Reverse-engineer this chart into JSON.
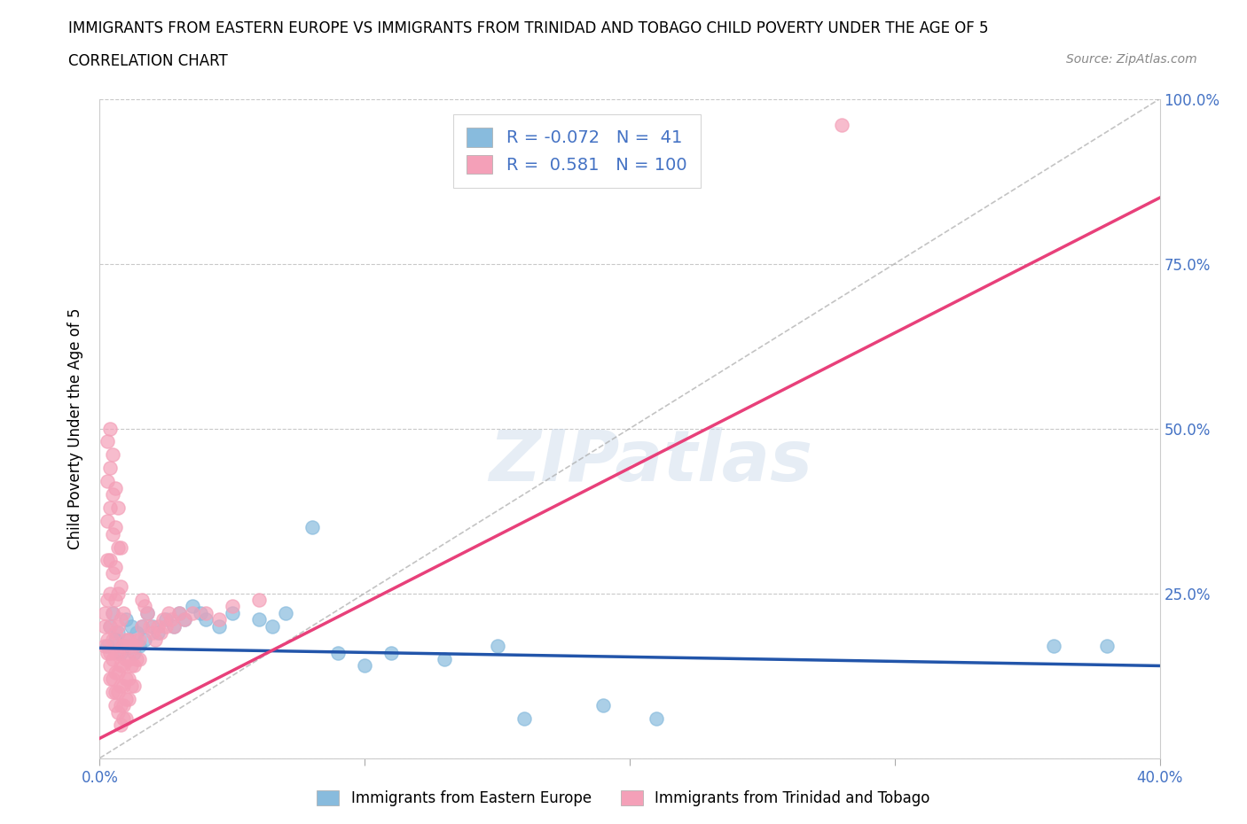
{
  "title_line1": "IMMIGRANTS FROM EASTERN EUROPE VS IMMIGRANTS FROM TRINIDAD AND TOBAGO CHILD POVERTY UNDER THE AGE OF 5",
  "title_line2": "CORRELATION CHART",
  "source_text": "Source: ZipAtlas.com",
  "ylabel": "Child Poverty Under the Age of 5",
  "xlim": [
    0,
    0.4
  ],
  "ylim": [
    0,
    1.0
  ],
  "blue_R": -0.072,
  "blue_N": 41,
  "pink_R": 0.581,
  "pink_N": 100,
  "blue_color": "#88bbdd",
  "pink_color": "#f4a0b8",
  "blue_line_color": "#2255aa",
  "pink_line_color": "#e8407a",
  "blue_label": "Immigrants from Eastern Europe",
  "pink_label": "Immigrants from Trinidad and Tobago",
  "watermark": "ZIPatlas",
  "legend_text_color": "#4472c4",
  "blue_scatter": [
    [
      0.003,
      0.17
    ],
    [
      0.004,
      0.2
    ],
    [
      0.005,
      0.22
    ],
    [
      0.006,
      0.18
    ],
    [
      0.007,
      0.19
    ],
    [
      0.008,
      0.16
    ],
    [
      0.009,
      0.17
    ],
    [
      0.01,
      0.21
    ],
    [
      0.011,
      0.18
    ],
    [
      0.012,
      0.2
    ],
    [
      0.013,
      0.16
    ],
    [
      0.014,
      0.19
    ],
    [
      0.015,
      0.17
    ],
    [
      0.016,
      0.2
    ],
    [
      0.017,
      0.18
    ],
    [
      0.018,
      0.22
    ],
    [
      0.02,
      0.2
    ],
    [
      0.022,
      0.19
    ],
    [
      0.025,
      0.21
    ],
    [
      0.028,
      0.2
    ],
    [
      0.03,
      0.22
    ],
    [
      0.032,
      0.21
    ],
    [
      0.035,
      0.23
    ],
    [
      0.038,
      0.22
    ],
    [
      0.04,
      0.21
    ],
    [
      0.045,
      0.2
    ],
    [
      0.05,
      0.22
    ],
    [
      0.06,
      0.21
    ],
    [
      0.065,
      0.2
    ],
    [
      0.07,
      0.22
    ],
    [
      0.08,
      0.35
    ],
    [
      0.09,
      0.16
    ],
    [
      0.1,
      0.14
    ],
    [
      0.11,
      0.16
    ],
    [
      0.13,
      0.15
    ],
    [
      0.15,
      0.17
    ],
    [
      0.16,
      0.06
    ],
    [
      0.19,
      0.08
    ],
    [
      0.21,
      0.06
    ],
    [
      0.36,
      0.17
    ],
    [
      0.38,
      0.17
    ]
  ],
  "pink_scatter": [
    [
      0.002,
      0.17
    ],
    [
      0.002,
      0.2
    ],
    [
      0.002,
      0.22
    ],
    [
      0.003,
      0.18
    ],
    [
      0.003,
      0.24
    ],
    [
      0.003,
      0.3
    ],
    [
      0.003,
      0.36
    ],
    [
      0.003,
      0.42
    ],
    [
      0.003,
      0.48
    ],
    [
      0.003,
      0.16
    ],
    [
      0.004,
      0.2
    ],
    [
      0.004,
      0.25
    ],
    [
      0.004,
      0.3
    ],
    [
      0.004,
      0.38
    ],
    [
      0.004,
      0.44
    ],
    [
      0.004,
      0.5
    ],
    [
      0.004,
      0.16
    ],
    [
      0.004,
      0.14
    ],
    [
      0.004,
      0.12
    ],
    [
      0.005,
      0.18
    ],
    [
      0.005,
      0.22
    ],
    [
      0.005,
      0.28
    ],
    [
      0.005,
      0.34
    ],
    [
      0.005,
      0.4
    ],
    [
      0.005,
      0.46
    ],
    [
      0.005,
      0.15
    ],
    [
      0.005,
      0.12
    ],
    [
      0.005,
      0.1
    ],
    [
      0.006,
      0.19
    ],
    [
      0.006,
      0.24
    ],
    [
      0.006,
      0.29
    ],
    [
      0.006,
      0.35
    ],
    [
      0.006,
      0.41
    ],
    [
      0.006,
      0.16
    ],
    [
      0.006,
      0.13
    ],
    [
      0.006,
      0.1
    ],
    [
      0.006,
      0.08
    ],
    [
      0.007,
      0.2
    ],
    [
      0.007,
      0.25
    ],
    [
      0.007,
      0.32
    ],
    [
      0.007,
      0.38
    ],
    [
      0.007,
      0.16
    ],
    [
      0.007,
      0.13
    ],
    [
      0.007,
      0.1
    ],
    [
      0.007,
      0.07
    ],
    [
      0.008,
      0.21
    ],
    [
      0.008,
      0.26
    ],
    [
      0.008,
      0.32
    ],
    [
      0.008,
      0.17
    ],
    [
      0.008,
      0.14
    ],
    [
      0.008,
      0.11
    ],
    [
      0.008,
      0.08
    ],
    [
      0.008,
      0.05
    ],
    [
      0.009,
      0.22
    ],
    [
      0.009,
      0.17
    ],
    [
      0.009,
      0.14
    ],
    [
      0.009,
      0.11
    ],
    [
      0.009,
      0.08
    ],
    [
      0.009,
      0.06
    ],
    [
      0.01,
      0.18
    ],
    [
      0.01,
      0.15
    ],
    [
      0.01,
      0.12
    ],
    [
      0.01,
      0.09
    ],
    [
      0.01,
      0.06
    ],
    [
      0.011,
      0.18
    ],
    [
      0.011,
      0.15
    ],
    [
      0.011,
      0.12
    ],
    [
      0.011,
      0.09
    ],
    [
      0.012,
      0.17
    ],
    [
      0.012,
      0.14
    ],
    [
      0.012,
      0.11
    ],
    [
      0.013,
      0.17
    ],
    [
      0.013,
      0.14
    ],
    [
      0.013,
      0.11
    ],
    [
      0.014,
      0.18
    ],
    [
      0.014,
      0.15
    ],
    [
      0.015,
      0.18
    ],
    [
      0.015,
      0.15
    ],
    [
      0.016,
      0.24
    ],
    [
      0.016,
      0.2
    ],
    [
      0.017,
      0.23
    ],
    [
      0.018,
      0.22
    ],
    [
      0.019,
      0.2
    ],
    [
      0.02,
      0.19
    ],
    [
      0.021,
      0.18
    ],
    [
      0.022,
      0.2
    ],
    [
      0.023,
      0.19
    ],
    [
      0.024,
      0.21
    ],
    [
      0.025,
      0.2
    ],
    [
      0.026,
      0.22
    ],
    [
      0.027,
      0.21
    ],
    [
      0.028,
      0.2
    ],
    [
      0.03,
      0.22
    ],
    [
      0.032,
      0.21
    ],
    [
      0.035,
      0.22
    ],
    [
      0.04,
      0.22
    ],
    [
      0.045,
      0.21
    ],
    [
      0.05,
      0.23
    ],
    [
      0.06,
      0.24
    ],
    [
      0.28,
      0.96
    ]
  ]
}
